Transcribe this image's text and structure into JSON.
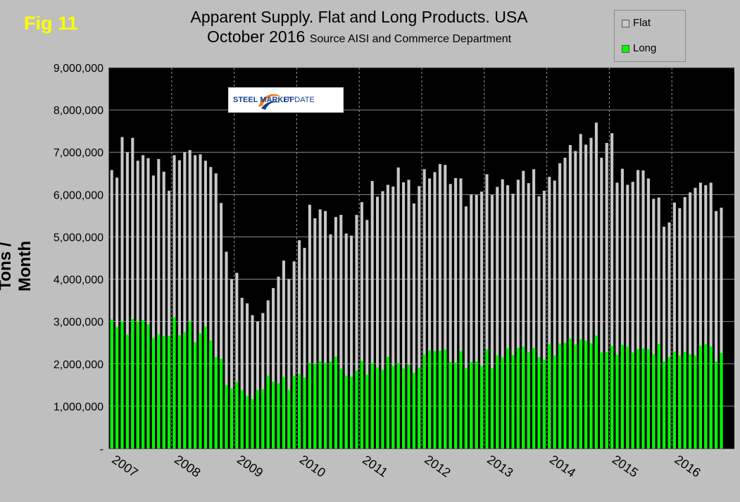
{
  "figure": {
    "label": "Fig 11",
    "title_line1": "Apparent Supply. Flat and Long Products. USA",
    "title_line2_main": "October 2016",
    "title_line2_source": "Source AISI and Commerce Department",
    "logo_text_bold": "STEEL MARKET",
    "logo_text_light": "UPDATE"
  },
  "colors": {
    "background": "#bfbfbf",
    "plot_background": "#000000",
    "flat": "#c8c8c8",
    "long": "#00ff00",
    "fig_label": "#ffff00"
  },
  "chart_data": {
    "type": "bar",
    "title": "Apparent Supply. Flat and Long Products. USA",
    "ylabel": "Tons / Month",
    "xlabel": "",
    "ylim": [
      0,
      9000000
    ],
    "y_ticks": [
      "-",
      "1,000,000",
      "2,000,000",
      "3,000,000",
      "4,000,000",
      "5,000,000",
      "6,000,000",
      "7,000,000",
      "8,000,000",
      "9,000,000"
    ],
    "x_tick_labels": [
      "2007",
      "2008",
      "2009",
      "2010",
      "2011",
      "2012",
      "2013",
      "2014",
      "2015",
      "2016"
    ],
    "legend": [
      "Flat",
      "Long"
    ],
    "legend_position": "top-right",
    "grid": true,
    "start": "2007-01",
    "end": "2016-10",
    "series": [
      {
        "name": "Flat",
        "values": [
          6580000,
          6400000,
          7360000,
          7000000,
          7340000,
          6800000,
          6930000,
          6860000,
          6450000,
          6840000,
          6540000,
          6090000,
          6930000,
          6810000,
          7000000,
          7050000,
          6930000,
          6950000,
          6800000,
          6650000,
          6500000,
          5800000,
          4650000,
          4000000,
          4150000,
          3560000,
          3430000,
          3150000,
          3000000,
          3200000,
          3500000,
          3790000,
          4060000,
          4440000,
          4000000,
          4420000,
          4920000,
          4740000,
          5760000,
          5440000,
          5650000,
          5610000,
          5060000,
          5470000,
          5520000,
          5080000,
          5030000,
          5520000,
          5820000,
          5400000,
          6320000,
          5950000,
          6080000,
          6230000,
          6190000,
          6640000,
          6290000,
          6350000,
          5790000,
          6200000,
          6600000,
          6380000,
          6530000,
          6720000,
          6700000,
          6250000,
          6390000,
          6380000,
          5720000,
          6000000,
          5990000,
          6070000,
          6480000,
          5990000,
          6180000,
          6360000,
          6220000,
          6020000,
          6350000,
          6560000,
          6270000,
          6600000,
          5960000,
          6090000,
          6420000,
          6330000,
          6740000,
          6870000,
          7170000,
          7030000,
          7430000,
          7180000,
          7340000,
          7700000,
          6870000,
          7220000,
          7450000,
          6280000,
          6610000,
          6230000,
          6300000,
          6580000,
          6570000,
          6380000,
          5900000,
          5930000,
          5240000,
          5340000,
          5810000,
          5680000,
          5940000,
          6050000,
          6160000,
          6280000,
          6220000,
          6280000,
          5610000,
          5690000
        ]
      },
      {
        "name": "Long",
        "values": [
          3050000,
          2870000,
          3000000,
          2690000,
          3060000,
          3000000,
          3030000,
          2930000,
          2610000,
          2700000,
          2660000,
          2660000,
          3100000,
          2680000,
          2750000,
          3000000,
          2510000,
          2720000,
          2880000,
          2550000,
          2160000,
          2120000,
          1500000,
          1420000,
          1570000,
          1380000,
          1240000,
          1170000,
          1380000,
          1400000,
          1720000,
          1580000,
          1540000,
          1690000,
          1390000,
          1720000,
          1760000,
          1680000,
          2020000,
          2000000,
          2060000,
          2020000,
          2060000,
          2170000,
          1890000,
          1720000,
          1700000,
          1840000,
          2070000,
          1750000,
          2010000,
          1920000,
          1860000,
          2170000,
          1950000,
          2020000,
          1890000,
          1980000,
          1790000,
          1910000,
          2220000,
          2320000,
          2300000,
          2310000,
          2340000,
          2050000,
          2030000,
          2300000,
          1900000,
          2040000,
          2060000,
          1950000,
          2340000,
          1900000,
          2200000,
          2150000,
          2370000,
          2210000,
          2380000,
          2400000,
          2280000,
          2380000,
          2160000,
          2100000,
          2470000,
          2200000,
          2480000,
          2500000,
          2600000,
          2460000,
          2580000,
          2550000,
          2490000,
          2670000,
          2270000,
          2280000,
          2420000,
          2220000,
          2450000,
          2410000,
          2270000,
          2350000,
          2360000,
          2350000,
          2230000,
          2470000,
          2060000,
          2160000,
          2290000,
          2200000,
          2280000,
          2230000,
          2200000,
          2430000,
          2470000,
          2410000,
          2060000,
          2260000
        ]
      }
    ]
  }
}
